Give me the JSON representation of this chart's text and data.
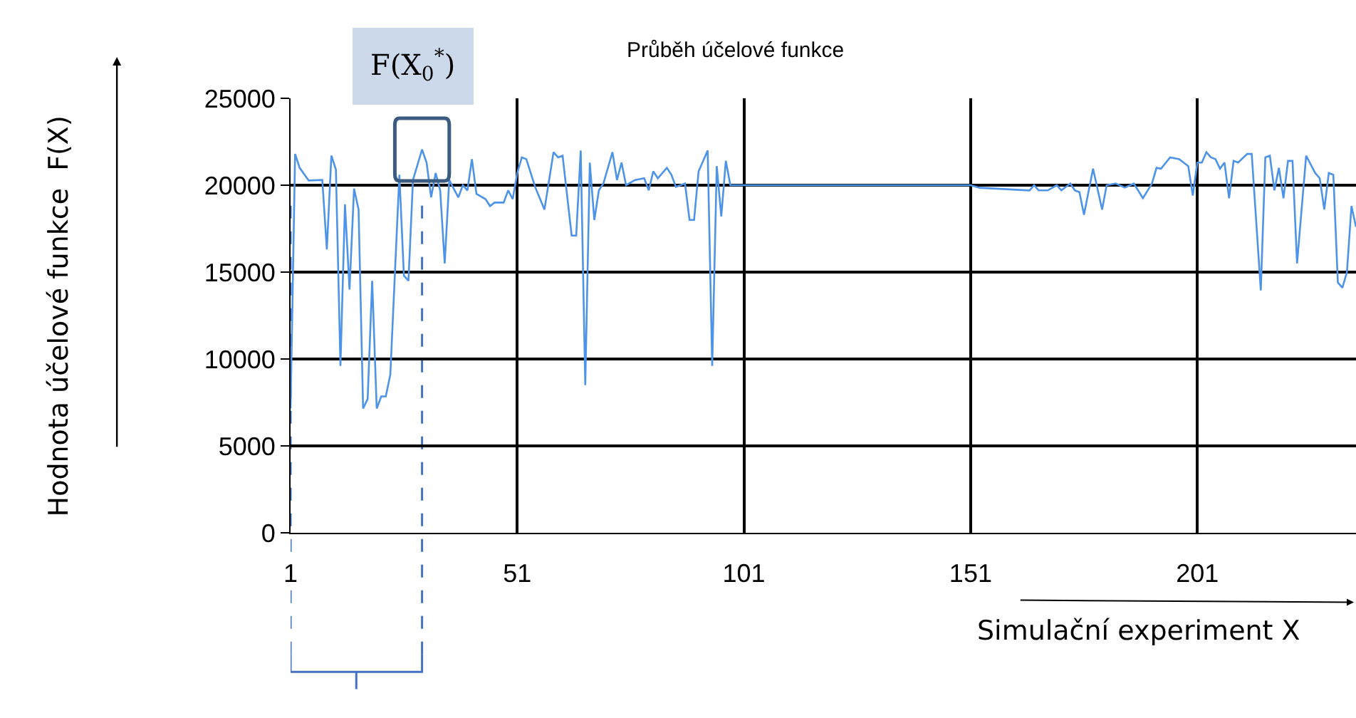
{
  "chart_data": {
    "type": "line",
    "title": "Průběh účelové funkce",
    "xlabel": "Simulační experiment X",
    "ylabel": "Hodnota účelové funkce  F(X)",
    "x": [
      1,
      2,
      3,
      5,
      8,
      9,
      10,
      11,
      12,
      13,
      14,
      15,
      16,
      17,
      18,
      19,
      20,
      21,
      22,
      23,
      25,
      26,
      27,
      28,
      30,
      31,
      32,
      33,
      34,
      35,
      36,
      38,
      39,
      40,
      41,
      42,
      44,
      45,
      46,
      48,
      49,
      50,
      51,
      52,
      53,
      55,
      57,
      59,
      60,
      61,
      63,
      64,
      65,
      66,
      67,
      68,
      69,
      70,
      72,
      73,
      74,
      75,
      77,
      79,
      80,
      81,
      82,
      84,
      85,
      86,
      88,
      89,
      90,
      91,
      93,
      94,
      95,
      96,
      97,
      98,
      113,
      151,
      153,
      164,
      165,
      166,
      168,
      170,
      171,
      173,
      174,
      175,
      176,
      178,
      180,
      181,
      183,
      185,
      187,
      189,
      191,
      192,
      193,
      195,
      197,
      199,
      200,
      201,
      202,
      203,
      204,
      205,
      206,
      207,
      208,
      209,
      210,
      212,
      213,
      215,
      216,
      217,
      218,
      219,
      220,
      221,
      222,
      223,
      225,
      227,
      228,
      229,
      230,
      231,
      232,
      233,
      234,
      235,
      236
    ],
    "series": [
      {
        "color": "#4d94e8",
        "values": [
          7150,
          21800,
          21000,
          20270,
          20300,
          16300,
          21700,
          20900,
          9600,
          18900,
          14000,
          19800,
          18600,
          7150,
          7700,
          14500,
          7150,
          7850,
          7850,
          9100,
          20600,
          14800,
          14500,
          20300,
          22050,
          21300,
          19300,
          20700,
          19700,
          15500,
          20300,
          19300,
          20000,
          19700,
          21500,
          19500,
          19200,
          18800,
          19000,
          19000,
          19700,
          19200,
          20700,
          21600,
          21500,
          19860,
          18600,
          21900,
          21600,
          21700,
          17100,
          17100,
          22000,
          8500,
          21300,
          18000,
          19700,
          20100,
          21900,
          20300,
          21300,
          20000,
          20300,
          20400,
          19700,
          20800,
          20400,
          21000,
          20600,
          19900,
          20100,
          18000,
          18000,
          20800,
          22000,
          9600,
          21100,
          18200,
          21400,
          20000,
          20000,
          20000,
          19850,
          19700,
          20000,
          19700,
          19700,
          20000,
          19700,
          20100,
          19700,
          19600,
          18300,
          20950,
          18600,
          20000,
          20100,
          19860,
          20100,
          19250,
          20100,
          21000,
          20950,
          21600,
          21500,
          21100,
          19400,
          21300,
          21300,
          21900,
          21600,
          21500,
          20950,
          21300,
          19250,
          21400,
          21300,
          21800,
          21800,
          13950,
          21600,
          21700,
          19700,
          21000,
          19250,
          21400,
          21400,
          15500,
          21700,
          20700,
          20400,
          18600,
          20700,
          20600,
          14400,
          14100,
          15000,
          18800,
          17600
        ]
      }
    ],
    "xlim": [
      1,
      236
    ],
    "xticks": [
      1,
      51,
      101,
      151,
      201
    ],
    "ylim": [
      0,
      25000
    ],
    "yticks": [
      0,
      5000,
      10000,
      15000,
      20000,
      25000
    ],
    "grid": true,
    "annotations": [
      {
        "text": "F(X$_{0}$$^{*}$)",
        "x": 30,
        "y": 22050
      }
    ],
    "ref_lines": [
      {
        "axis": "x",
        "value": 1,
        "label": null,
        "color": "#4472c4",
        "line_style": "dashed"
      },
      {
        "axis": "x",
        "value": 30,
        "label": null,
        "color": "#4472c4",
        "line_style": "dashed"
      }
    ]
  }
}
